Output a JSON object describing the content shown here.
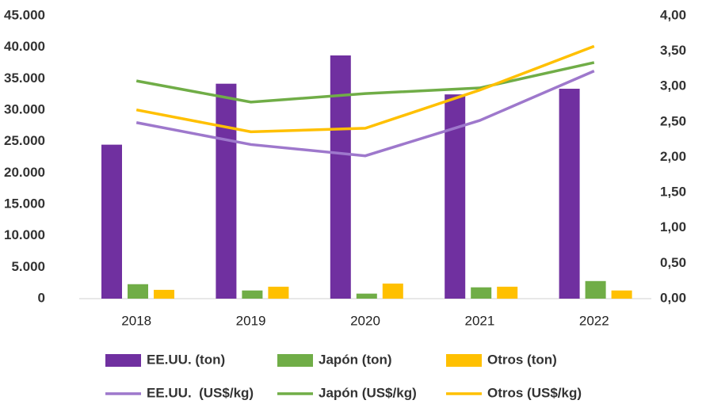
{
  "chart_data": {
    "type": "bar_line",
    "categories": [
      "2018",
      "2019",
      "2020",
      "2021",
      "2022"
    ],
    "series": [
      {
        "name": "EE.UU. (ton)",
        "color": "#7030a0",
        "kind": "bar",
        "values": [
          24500,
          34200,
          38700,
          32500,
          33400
        ]
      },
      {
        "name": "Japón (ton)",
        "color": "#70ad47",
        "kind": "bar",
        "values": [
          2300,
          1300,
          800,
          1800,
          2800
        ]
      },
      {
        "name": "Otros (ton)",
        "color": "#ffc000",
        "kind": "bar",
        "values": [
          1400,
          1900,
          2400,
          1900,
          1300
        ]
      },
      {
        "name": "EE.UU.  (US$/kg)",
        "color": "#9e78cc",
        "kind": "line",
        "axis": "y2",
        "values": [
          2.49,
          2.18,
          2.02,
          2.52,
          3.22
        ]
      },
      {
        "name": "Japón (US$/kg)",
        "color": "#70ad47",
        "kind": "line",
        "axis": "y2",
        "values": [
          3.08,
          2.78,
          2.9,
          2.98,
          3.34
        ]
      },
      {
        "name": "Otros (US$/kg)",
        "color": "#ffc000",
        "kind": "line",
        "axis": "y2",
        "values": [
          2.67,
          2.36,
          2.41,
          2.95,
          3.57
        ]
      }
    ],
    "ylim": [
      0,
      45000
    ],
    "yticks": [
      0,
      {
        "value": 5000,
        "label": "5.000"
      },
      {
        "value": 10000,
        "label": "10.000"
      },
      {
        "value": 15000,
        "label": "15.000"
      },
      {
        "value": 20000,
        "label": "20.000"
      },
      {
        "value": 25000,
        "label": "25.000"
      },
      {
        "value": 30000,
        "label": "30.000"
      },
      {
        "value": 35000,
        "label": "35.000"
      },
      {
        "value": 40000,
        "label": "40.000"
      },
      {
        "value": 45000,
        "label": "45.000"
      }
    ],
    "y2lim": [
      0,
      4
    ],
    "y2ticks": [
      {
        "value": 0,
        "label": "0,00"
      },
      {
        "value": 0.5,
        "label": "0,50"
      },
      {
        "value": 1,
        "label": "1,00"
      },
      {
        "value": 1.5,
        "label": "1,50"
      },
      {
        "value": 2,
        "label": "2,00"
      },
      {
        "value": 2.5,
        "label": "2,50"
      },
      {
        "value": 3,
        "label": "3,00"
      },
      {
        "value": 3.5,
        "label": "3,50"
      },
      {
        "value": 4,
        "label": "4,00"
      }
    ],
    "grid": false,
    "legend": "bottom"
  }
}
